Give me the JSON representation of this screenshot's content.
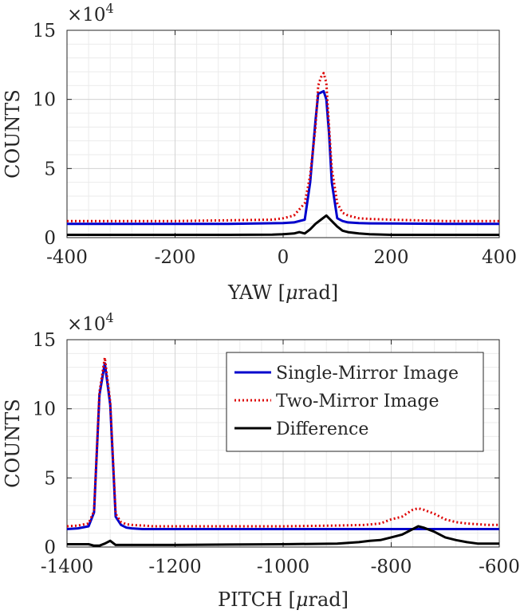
{
  "chart_data": [
    {
      "type": "line",
      "title": "",
      "multiplier": "×10",
      "multiplier_exp": "4",
      "xlabel_main": "YAW [",
      "xlabel_mu": "μ",
      "xlabel_unit": "rad]",
      "ylabel": "COUNTS",
      "xlim": [
        -400,
        400
      ],
      "ylim": [
        0,
        150000
      ],
      "x_ticks": [
        -400,
        -200,
        0,
        200,
        400
      ],
      "x_tick_labels": [
        "-400",
        "-200",
        "0",
        "200",
        "400"
      ],
      "y_ticks": [
        0,
        50000,
        100000,
        150000
      ],
      "y_tick_labels": [
        "0",
        "5",
        "10",
        "15"
      ],
      "grid": true,
      "series": [
        {
          "name": "Single-Mirror Image",
          "color": "#0000cc",
          "style": "solid",
          "x": [
            -400,
            -300,
            -200,
            -100,
            0,
            20,
            40,
            50,
            60,
            65,
            70,
            75,
            80,
            85,
            90,
            100,
            110,
            120,
            140,
            160,
            200,
            300,
            400
          ],
          "values": [
            10000,
            10000,
            10000,
            10000,
            10500,
            11000,
            13000,
            40000,
            85000,
            104000,
            105000,
            106000,
            100000,
            75000,
            40000,
            14000,
            12000,
            11000,
            10500,
            10300,
            10200,
            10000,
            10000
          ]
        },
        {
          "name": "Two-Mirror Image",
          "color": "#dd0000",
          "style": "dotted",
          "x": [
            -400,
            -300,
            -200,
            -100,
            -20,
            0,
            20,
            40,
            50,
            60,
            65,
            70,
            75,
            80,
            85,
            90,
            100,
            110,
            120,
            140,
            160,
            200,
            300,
            400
          ],
          "values": [
            12000,
            12000,
            12000,
            12500,
            13000,
            14000,
            16000,
            25000,
            45000,
            80000,
            110000,
            116000,
            119000,
            112000,
            80000,
            50000,
            25000,
            18000,
            16000,
            14000,
            13500,
            13000,
            12000,
            12000
          ]
        },
        {
          "name": "Difference",
          "color": "#000000",
          "style": "solid",
          "x": [
            -400,
            -300,
            -200,
            -100,
            -20,
            0,
            20,
            30,
            40,
            50,
            60,
            70,
            80,
            90,
            100,
            110,
            120,
            140,
            160,
            200,
            300,
            400
          ],
          "values": [
            2000,
            2000,
            2000,
            2000,
            2200,
            2500,
            3000,
            4000,
            3000,
            6000,
            10000,
            13000,
            16000,
            12000,
            8000,
            5000,
            4000,
            3000,
            2500,
            2000,
            2000,
            2000
          ]
        }
      ]
    },
    {
      "type": "line",
      "title": "",
      "multiplier": "×10",
      "multiplier_exp": "4",
      "xlabel_main": "PITCH [",
      "xlabel_mu": "μ",
      "xlabel_unit": "rad]",
      "ylabel": "COUNTS",
      "xlim": [
        -1400,
        -600
      ],
      "ylim": [
        0,
        150000
      ],
      "x_ticks": [
        -1400,
        -1200,
        -1000,
        -800,
        -600
      ],
      "x_tick_labels": [
        "-1400",
        "-1200",
        "-1000",
        "-800",
        "-600"
      ],
      "y_ticks": [
        0,
        50000,
        100000,
        150000
      ],
      "y_tick_labels": [
        "0",
        "5",
        "10",
        "15"
      ],
      "grid": true,
      "legend_position": "top-right",
      "series": [
        {
          "name": "Single-Mirror Image",
          "color": "#0000cc",
          "style": "solid",
          "x": [
            -1400,
            -1380,
            -1360,
            -1350,
            -1340,
            -1330,
            -1320,
            -1310,
            -1300,
            -1290,
            -1280,
            -1260,
            -1240,
            -1200,
            -1100,
            -1000,
            -900,
            -800,
            -700,
            -600
          ],
          "values": [
            13000,
            13500,
            15000,
            25000,
            110000,
            133000,
            103000,
            22000,
            16000,
            14000,
            13500,
            13000,
            13000,
            13000,
            13000,
            13000,
            13000,
            13000,
            13000,
            13000
          ]
        },
        {
          "name": "Two-Mirror Image",
          "color": "#dd0000",
          "style": "dotted",
          "x": [
            -1400,
            -1380,
            -1360,
            -1350,
            -1340,
            -1330,
            -1320,
            -1310,
            -1300,
            -1290,
            -1280,
            -1260,
            -1240,
            -1200,
            -1100,
            -1000,
            -900,
            -850,
            -820,
            -800,
            -780,
            -760,
            -750,
            -740,
            -720,
            -700,
            -680,
            -660,
            -640,
            -620,
            -600
          ],
          "values": [
            15000,
            15500,
            17000,
            26000,
            112000,
            137000,
            105000,
            24000,
            18000,
            16500,
            16000,
            15500,
            15000,
            15000,
            15000,
            15000,
            15500,
            16000,
            17000,
            20000,
            22000,
            27000,
            28000,
            27000,
            24000,
            20000,
            18000,
            17000,
            16500,
            16000,
            16000
          ]
        },
        {
          "name": "Difference",
          "color": "#000000",
          "style": "solid",
          "x": [
            -1400,
            -1380,
            -1360,
            -1350,
            -1340,
            -1330,
            -1320,
            -1310,
            -1300,
            -1290,
            -1250,
            -1200,
            -1100,
            -1000,
            -900,
            -860,
            -840,
            -820,
            -800,
            -780,
            -760,
            -750,
            -740,
            -720,
            -700,
            -680,
            -660,
            -640,
            -620,
            -600
          ],
          "values": [
            2000,
            2000,
            2000,
            1000,
            1000,
            2500,
            4500,
            1500,
            1500,
            1500,
            1500,
            1500,
            1800,
            2000,
            2500,
            3500,
            4500,
            5000,
            7000,
            9000,
            13000,
            15000,
            14000,
            11000,
            7000,
            5000,
            3500,
            2500,
            2500,
            2500
          ]
        }
      ]
    }
  ]
}
